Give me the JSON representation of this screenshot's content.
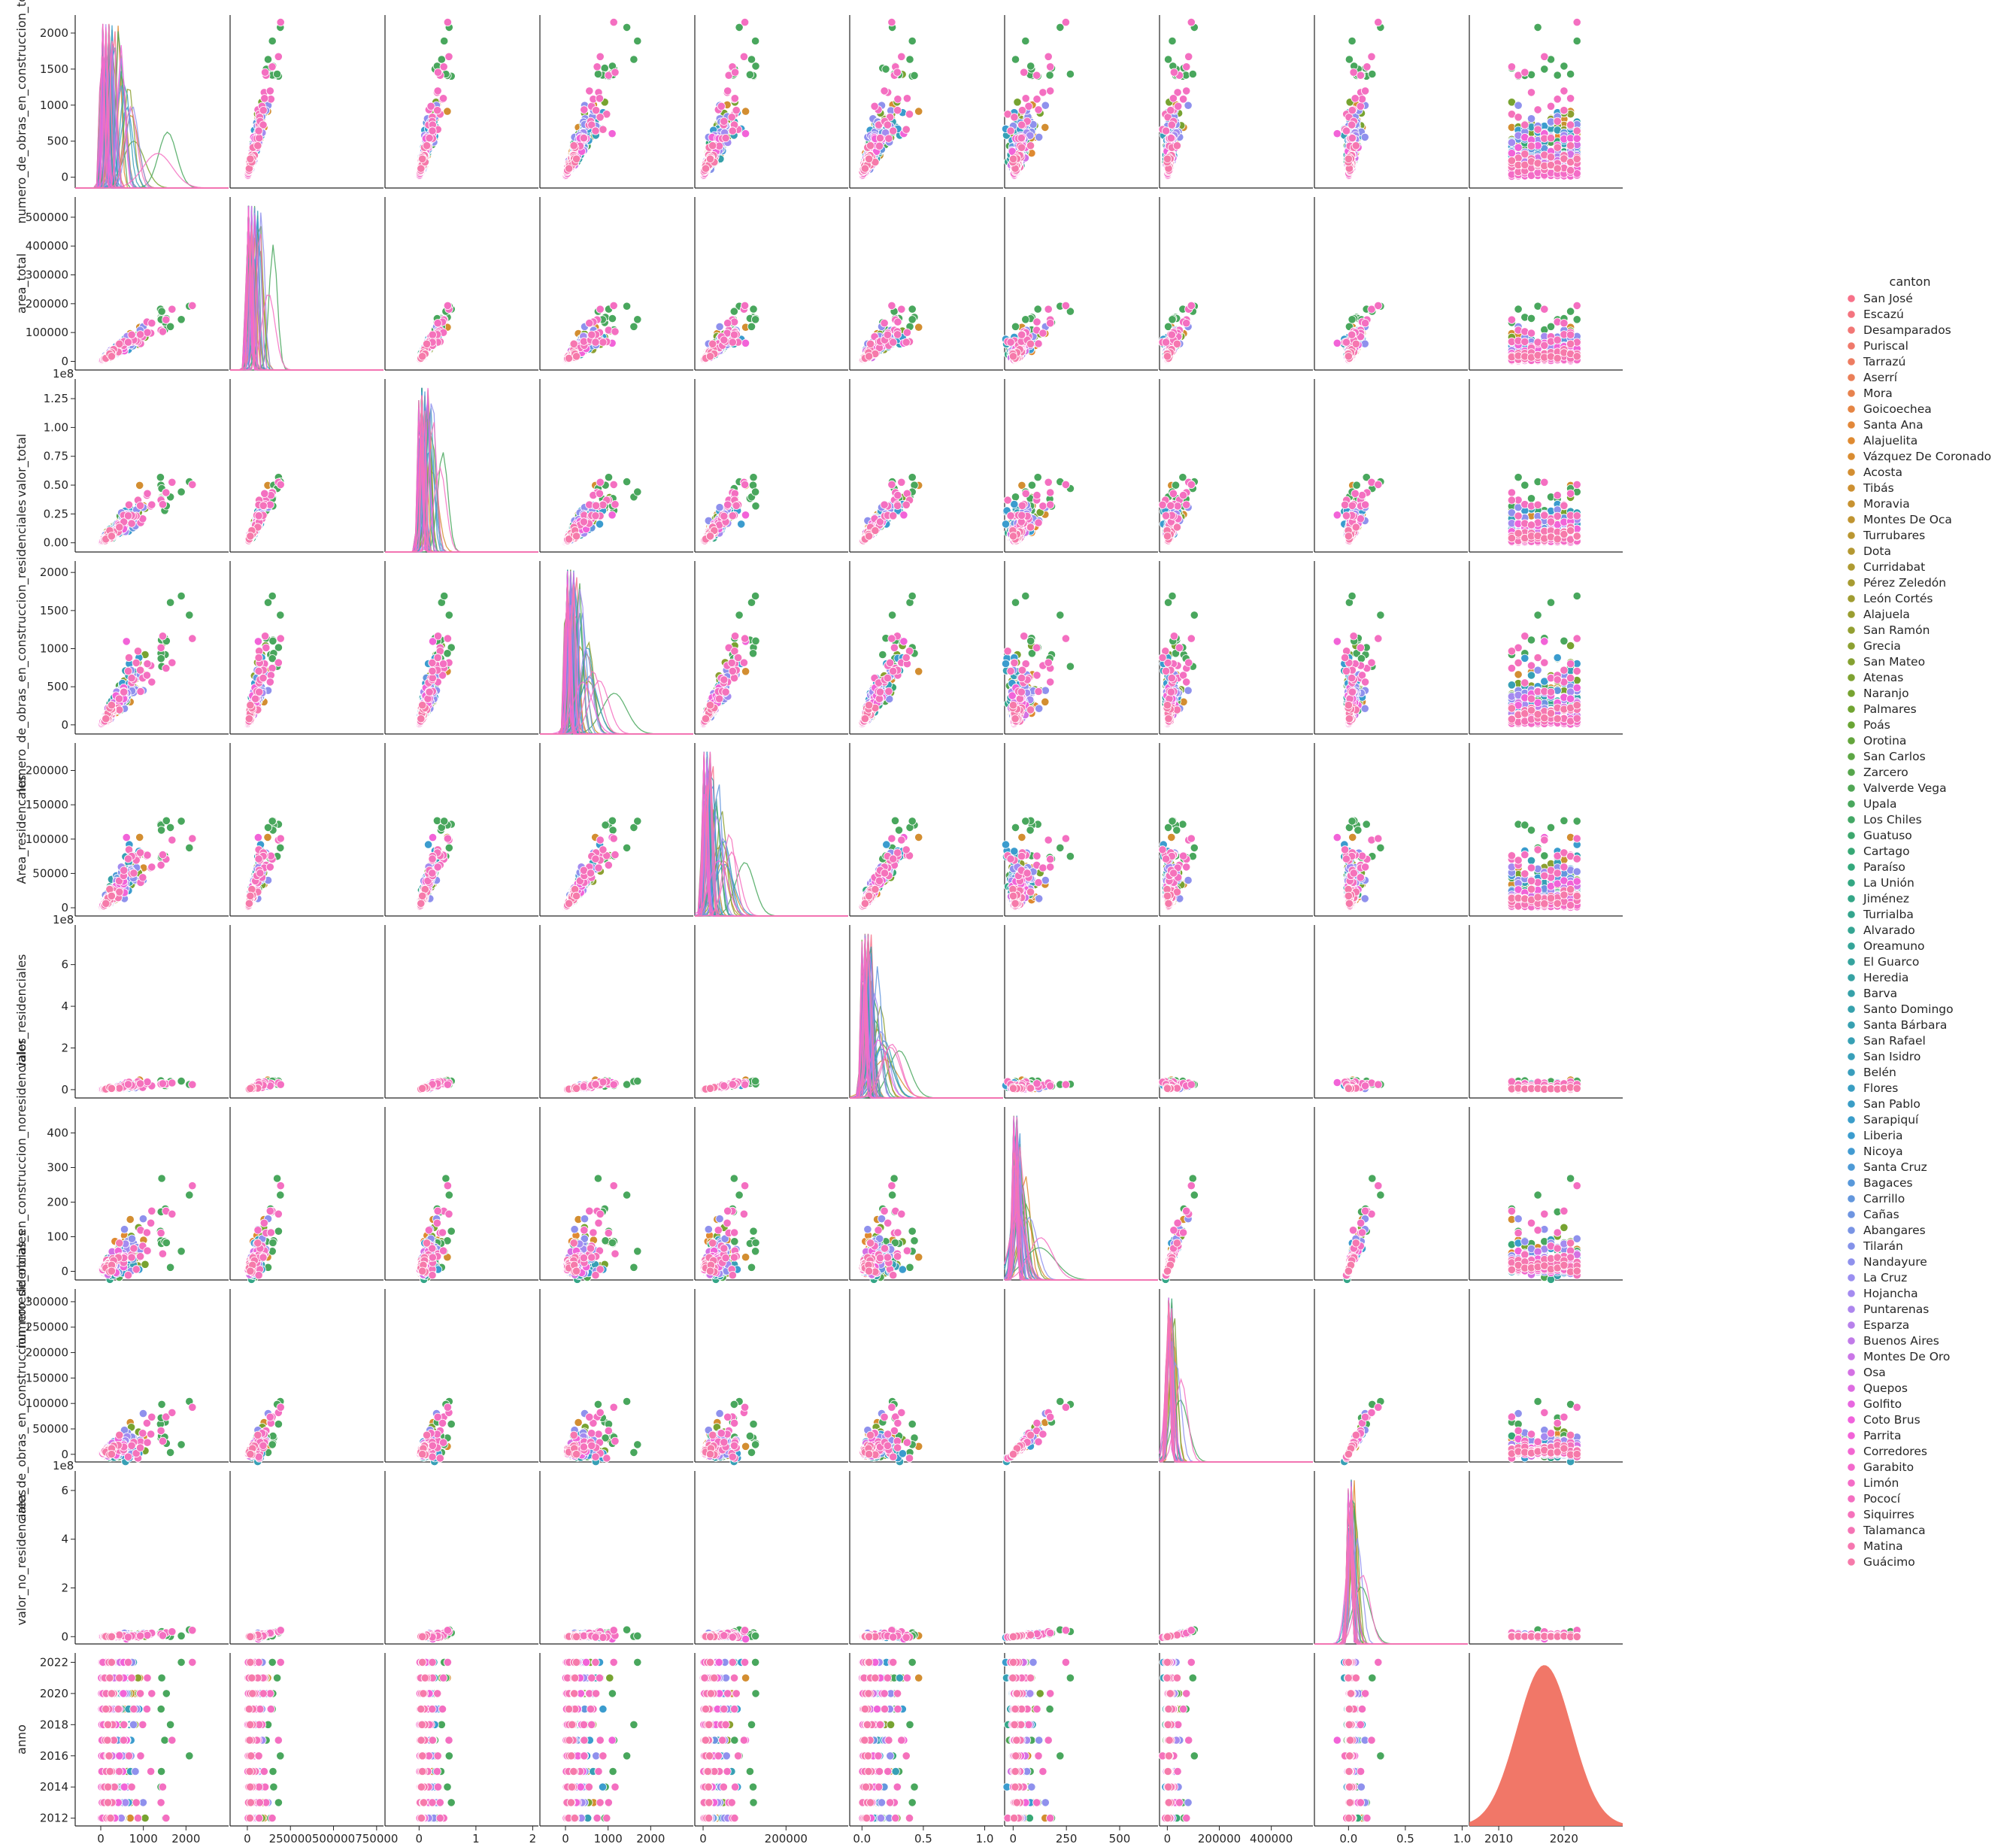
{
  "chart_data": {
    "type": "scatter",
    "figure": "pairplot",
    "hue": "canton",
    "variables": [
      {
        "name": "numero_de_obras_en_construccion_total",
        "xlim": [
          -600,
          3000
        ],
        "ylim": [
          -150,
          2250
        ],
        "xticks": [
          {
            "v": 0,
            "t": "0"
          },
          {
            "v": 1000,
            "t": "1000"
          },
          {
            "v": 2000,
            "t": "2000"
          }
        ],
        "yticks": [
          {
            "v": 0,
            "t": "0"
          },
          {
            "v": 500,
            "t": "500"
          },
          {
            "v": 1000,
            "t": "1000"
          },
          {
            "v": 1500,
            "t": "1500"
          },
          {
            "v": 2000,
            "t": "2000"
          }
        ],
        "offset_text": ""
      },
      {
        "name": "area_total",
        "xlim": [
          -100000,
          790000
        ],
        "ylim": [
          -30000,
          570000
        ],
        "xticks": [
          {
            "v": 0,
            "t": "0"
          },
          {
            "v": 250000,
            "t": "250000"
          },
          {
            "v": 500000,
            "t": "500000"
          },
          {
            "v": 750000,
            "t": "750000"
          }
        ],
        "yticks": [
          {
            "v": 0,
            "t": "0"
          },
          {
            "v": 100000,
            "t": "100000"
          },
          {
            "v": 200000,
            "t": "200000"
          },
          {
            "v": 300000,
            "t": "300000"
          },
          {
            "v": 400000,
            "t": "400000"
          },
          {
            "v": 500000,
            "t": "500000"
          }
        ],
        "offset_text": ""
      },
      {
        "name": "valor_total",
        "xlim": [
          -0.6,
          2.1
        ],
        "ylim": [
          -0.08,
          1.42
        ],
        "xticks": [
          {
            "v": 0,
            "t": "0"
          },
          {
            "v": 1,
            "t": "1"
          },
          {
            "v": 2,
            "t": "2"
          }
        ],
        "yticks": [
          {
            "v": 0,
            "t": "0.00"
          },
          {
            "v": 0.25,
            "t": "0.25"
          },
          {
            "v": 0.5,
            "t": "0.50"
          },
          {
            "v": 0.75,
            "t": "0.75"
          },
          {
            "v": 1.0,
            "t": "1.00"
          },
          {
            "v": 1.25,
            "t": "1.25"
          }
        ],
        "offset_text": "1e8"
      },
      {
        "name": "numero_de_obras_en_construccion_residenciales",
        "xlim": [
          -600,
          3000
        ],
        "ylim": [
          -120,
          2150
        ],
        "xticks": [
          {
            "v": 0,
            "t": "0"
          },
          {
            "v": 1000,
            "t": "1000"
          },
          {
            "v": 2000,
            "t": "2000"
          }
        ],
        "yticks": [
          {
            "v": 0,
            "t": "0"
          },
          {
            "v": 500,
            "t": "500"
          },
          {
            "v": 1000,
            "t": "1000"
          },
          {
            "v": 1500,
            "t": "1500"
          },
          {
            "v": 2000,
            "t": "2000"
          }
        ],
        "offset_text": ""
      },
      {
        "name": "Area_residencales",
        "xlim": [
          -20000,
          350000
        ],
        "ylim": [
          -12000,
          240000
        ],
        "xticks": [
          {
            "v": 0,
            "t": "0"
          },
          {
            "v": 200000,
            "t": "200000"
          }
        ],
        "yticks": [
          {
            "v": 0,
            "t": "0"
          },
          {
            "v": 50000,
            "t": "50000"
          },
          {
            "v": 100000,
            "t": "100000"
          },
          {
            "v": 150000,
            "t": "150000"
          },
          {
            "v": 200000,
            "t": "200000"
          }
        ],
        "offset_text": ""
      },
      {
        "name": "valor_residenciales",
        "xlim": [
          -0.1,
          1.15
        ],
        "ylim": [
          -0.4,
          7.9
        ],
        "xticks": [
          {
            "v": 0,
            "t": "0.0"
          },
          {
            "v": 0.5,
            "t": "0.5"
          },
          {
            "v": 1.0,
            "t": "1.0"
          }
        ],
        "yticks": [
          {
            "v": 0,
            "t": "0"
          },
          {
            "v": 2,
            "t": "2"
          },
          {
            "v": 4,
            "t": "4"
          },
          {
            "v": 6,
            "t": "6"
          }
        ],
        "offset_text": "1e8"
      },
      {
        "name": "numero_de_obras_en_construccion_noresidenciales",
        "xlim": [
          -40,
          680
        ],
        "ylim": [
          -25,
          475
        ],
        "xticks": [
          {
            "v": 0,
            "t": "0"
          },
          {
            "v": 250,
            "t": "250"
          },
          {
            "v": 500,
            "t": "500"
          }
        ],
        "yticks": [
          {
            "v": 0,
            "t": "0"
          },
          {
            "v": 100,
            "t": "100"
          },
          {
            "v": 200,
            "t": "200"
          },
          {
            "v": 300,
            "t": "300"
          },
          {
            "v": 400,
            "t": "400"
          }
        ],
        "offset_text": ""
      },
      {
        "name": "area_de_obras_en_construccion_noresidenciales",
        "xlim": [
          -30000,
          560000
        ],
        "ylim": [
          -15000,
          325000
        ],
        "xticks": [
          {
            "v": 0,
            "t": "0"
          },
          {
            "v": 200000,
            "t": "200000"
          },
          {
            "v": 400000,
            "t": "400000"
          }
        ],
        "yticks": [
          {
            "v": 0,
            "t": "0"
          },
          {
            "v": 50000,
            "t": "50000"
          },
          {
            "v": 100000,
            "t": "100000"
          },
          {
            "v": 150000,
            "t": "150000"
          },
          {
            "v": 200000,
            "t": "200000"
          },
          {
            "v": 250000,
            "t": "250000"
          },
          {
            "v": 300000,
            "t": "300000"
          }
        ],
        "offset_text": ""
      },
      {
        "name": "valor_no_residenciales",
        "xlim": [
          -0.3,
          1.05
        ],
        "ylim": [
          -0.3,
          6.8
        ],
        "xticks": [
          {
            "v": 0,
            "t": "0.0"
          },
          {
            "v": 0.5,
            "t": "0.5"
          },
          {
            "v": 1.0,
            "t": "1.0"
          }
        ],
        "yticks": [
          {
            "v": 0,
            "t": "0"
          },
          {
            "v": 2,
            "t": "2"
          },
          {
            "v": 4,
            "t": "4"
          },
          {
            "v": 6,
            "t": "6"
          }
        ],
        "offset_text": "1e8"
      },
      {
        "name": "anno",
        "xlim": [
          2005.5,
          2029
        ],
        "ylim": [
          2011.5,
          2022.6
        ],
        "xticks": [
          {
            "v": 2010,
            "t": "2010"
          },
          {
            "v": 2020,
            "t": "2020"
          }
        ],
        "yticks": [
          {
            "v": 2012,
            "t": "2012"
          },
          {
            "v": 2014,
            "t": "2014"
          },
          {
            "v": 2016,
            "t": "2016"
          },
          {
            "v": 2018,
            "t": "2018"
          },
          {
            "v": 2020,
            "t": "2020"
          },
          {
            "v": 2022,
            "t": "2022"
          }
        ],
        "offset_text": ""
      }
    ],
    "legend": {
      "title": "canton",
      "placement": "right",
      "entries": [
        "San José",
        "Escazú",
        "Desamparados",
        "Puriscal",
        "Tarrazú",
        "Aserrí",
        "Mora",
        "Goicoechea",
        "Santa Ana",
        "Alajuelita",
        "Vázquez De Coronado",
        "Acosta",
        "Tibás",
        "Moravia",
        "Montes De Oca",
        "Turrubares",
        "Dota",
        "Curridabat",
        "Pérez Zeledón",
        "León Cortés",
        "Alajuela",
        "San Ramón",
        "Grecia",
        "San Mateo",
        "Atenas",
        "Naranjo",
        "Palmares",
        "Poás",
        "Orotina",
        "San Carlos",
        "Zarcero",
        "Valverde Vega",
        "Upala",
        "Los Chiles",
        "Guatuso",
        "Cartago",
        "Paraíso",
        "La Unión",
        "Jiménez",
        "Turrialba",
        "Alvarado",
        "Oreamuno",
        "El Guarco",
        "Heredia",
        "Barva",
        "Santo Domingo",
        "Santa Bárbara",
        "San Rafael",
        "San Isidro",
        "Belén",
        "Flores",
        "San Pablo",
        "Sarapiquí",
        "Liberia",
        "Nicoya",
        "Santa Cruz",
        "Bagaces",
        "Carrillo",
        "Cañas",
        "Abangares",
        "Tilarán",
        "Nandayure",
        "La Cruz",
        "Hojancha",
        "Puntarenas",
        "Esparza",
        "Buenos Aires",
        "Montes De Oro",
        "Osa",
        "Quepos",
        "Golfito",
        "Coto Brus",
        "Parrita",
        "Corredores",
        "Garabito",
        "Limón",
        "Pococí",
        "Siquirres",
        "Talamanca",
        "Matina",
        "Guácimo"
      ]
    },
    "palette": [
      "#f77189",
      "#e08a31",
      "#a99b31",
      "#6ba531",
      "#33a87a",
      "#36a1ab",
      "#3b9ccf",
      "#9c8ff2",
      "#f261dd",
      "#f67aaa"
    ],
    "observations_per_canton": 11,
    "years": [
      2012,
      2013,
      2014,
      2015,
      2016,
      2017,
      2018,
      2019,
      2020,
      2021,
      2022
    ],
    "diag": "kde"
  }
}
